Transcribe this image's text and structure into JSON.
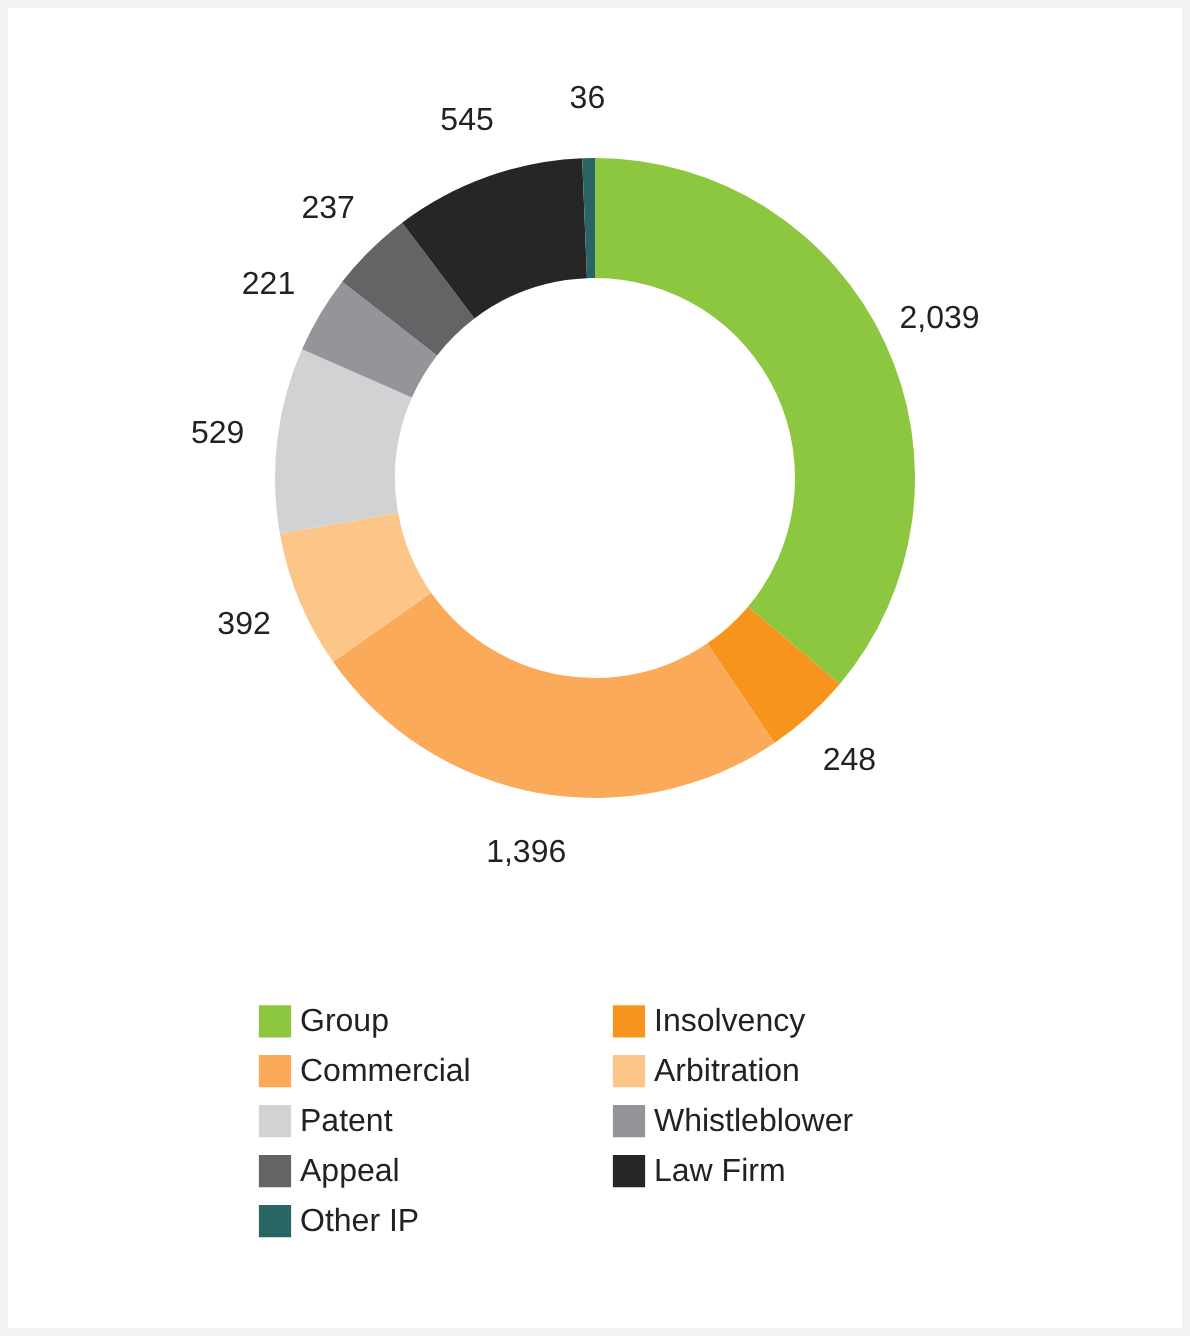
{
  "chart_data": {
    "type": "donut",
    "categories": [
      "Group",
      "Insolvency",
      "Commercial",
      "Arbitration",
      "Patent",
      "Whistleblower",
      "Appeal",
      "Law Firm",
      "Other IP"
    ],
    "values": [
      2039,
      248,
      1396,
      392,
      529,
      221,
      237,
      545,
      36
    ],
    "colors": [
      "#8dc63f",
      "#f7941d",
      "#fbaa5a",
      "#fdc689",
      "#d1d2d4",
      "#939598",
      "#636466",
      "#262626",
      "#2a6566"
    ],
    "value_labels": [
      "2,039",
      "248",
      "1,396",
      "392",
      "529",
      "221",
      "237",
      "545",
      "36"
    ],
    "legend": "bottom"
  }
}
